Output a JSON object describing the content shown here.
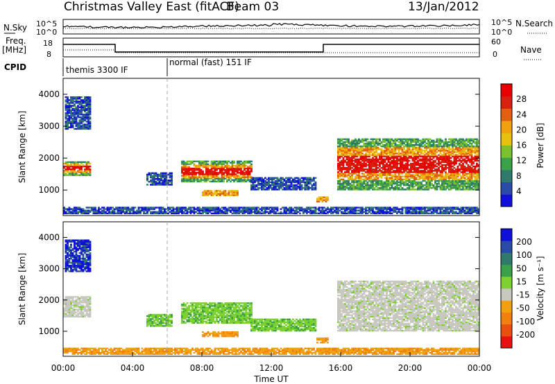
{
  "header": {
    "title": "Christmas Valley East (fitACF)",
    "beam": "Beam 03",
    "date": "13/Jan/2012"
  },
  "noise_panel": {
    "left_label": "N.Sky",
    "right_label": "N.Search",
    "left_ticks": [
      "10^5",
      "10^0"
    ],
    "right_ticks": [
      "10^5",
      "10^0"
    ]
  },
  "freq_panel": {
    "left_label_1": "Freq.",
    "left_label_2": "[MHz]",
    "right_label": "Nave",
    "left_ticks": [
      "18",
      "8"
    ],
    "right_ticks": [
      "60",
      "0"
    ],
    "cpid_label": "CPID",
    "cpid_segments": [
      {
        "label": "themis 3300 IF",
        "start_h": 0,
        "end_h": 6
      },
      {
        "label": "normal (fast) 151 IF",
        "start_h": 6,
        "end_h": 24
      }
    ]
  },
  "chart_data": [
    {
      "type": "heatmap",
      "name": "power-panel",
      "xlabel": "",
      "ylabel": "Slant Range [km]",
      "xlim": [
        0,
        24
      ],
      "ylim": [
        200,
        4500
      ],
      "yticks": [
        "1000",
        "2000",
        "3000",
        "4000"
      ],
      "colorbar": {
        "label": "Power [dB]",
        "ticks": [
          "4",
          "8",
          "12",
          "16",
          "20",
          "24",
          "28"
        ],
        "colors": [
          "#1010d8",
          "#2a4aa8",
          "#2f7a6a",
          "#3aa04a",
          "#7cc030",
          "#e8c010",
          "#f0a010",
          "#e06010",
          "#d82010",
          "#e80000"
        ]
      },
      "regions": [
        {
          "h0": 0.0,
          "h1": 1.6,
          "r0": 1450,
          "r1": 1900,
          "level": "high"
        },
        {
          "h0": 0.1,
          "h1": 1.6,
          "r0": 2900,
          "r1": 3900,
          "level": "low"
        },
        {
          "h0": 4.8,
          "h1": 6.2,
          "r0": 1150,
          "r1": 1550,
          "level": "low"
        },
        {
          "h0": 6.8,
          "h1": 10.8,
          "r0": 1250,
          "r1": 1900,
          "level": "high"
        },
        {
          "h0": 8.0,
          "h1": 10.0,
          "r0": 820,
          "r1": 1000,
          "level": "mid"
        },
        {
          "h0": 10.8,
          "h1": 14.5,
          "r0": 1000,
          "r1": 1400,
          "level": "low"
        },
        {
          "h0": 14.6,
          "h1": 15.2,
          "r0": 620,
          "r1": 760,
          "level": "mid"
        },
        {
          "h0": 15.8,
          "h1": 24.0,
          "r0": 1000,
          "r1": 2600,
          "level": "high"
        },
        {
          "h0": 0.0,
          "h1": 24.0,
          "r0": 250,
          "r1": 450,
          "level": "low"
        }
      ]
    },
    {
      "type": "heatmap",
      "name": "velocity-panel",
      "xlabel": "Time UT",
      "ylabel": "Slant Range [km]",
      "xlim": [
        0,
        24
      ],
      "ylim": [
        200,
        4500
      ],
      "xticks": [
        "00:00",
        "04:00",
        "08:00",
        "12:00",
        "16:00",
        "20:00",
        "00:00"
      ],
      "yticks": [
        "1000",
        "2000",
        "3000",
        "4000"
      ],
      "colorbar": {
        "label": "Velocity [m s⁻¹]",
        "ticks": [
          "200",
          "100",
          "50",
          "15",
          "-15",
          "-50",
          "-100",
          "-200"
        ],
        "colors": [
          "#1010d8",
          "#2a4aa8",
          "#2f7a6a",
          "#3aa04a",
          "#7cd030",
          "#c8c8c0",
          "#f0a010",
          "#f08010",
          "#e85010",
          "#e81010"
        ]
      },
      "regions": [
        {
          "h0": 0.0,
          "h1": 1.6,
          "r0": 1450,
          "r1": 2100,
          "level": "gray"
        },
        {
          "h0": 0.1,
          "h1": 1.6,
          "r0": 2900,
          "r1": 3900,
          "level": "blue"
        },
        {
          "h0": 4.8,
          "h1": 6.2,
          "r0": 1150,
          "r1": 1550,
          "level": "green"
        },
        {
          "h0": 6.8,
          "h1": 10.8,
          "r0": 1250,
          "r1": 1900,
          "level": "green"
        },
        {
          "h0": 8.0,
          "h1": 10.0,
          "r0": 820,
          "r1": 1000,
          "level": "orange"
        },
        {
          "h0": 10.8,
          "h1": 14.5,
          "r0": 1000,
          "r1": 1400,
          "level": "green"
        },
        {
          "h0": 14.6,
          "h1": 15.2,
          "r0": 620,
          "r1": 760,
          "level": "orange"
        },
        {
          "h0": 15.8,
          "h1": 24.0,
          "r0": 1000,
          "r1": 2600,
          "level": "gray"
        },
        {
          "h0": 0.0,
          "h1": 24.0,
          "r0": 250,
          "r1": 450,
          "level": "orange"
        }
      ]
    }
  ]
}
